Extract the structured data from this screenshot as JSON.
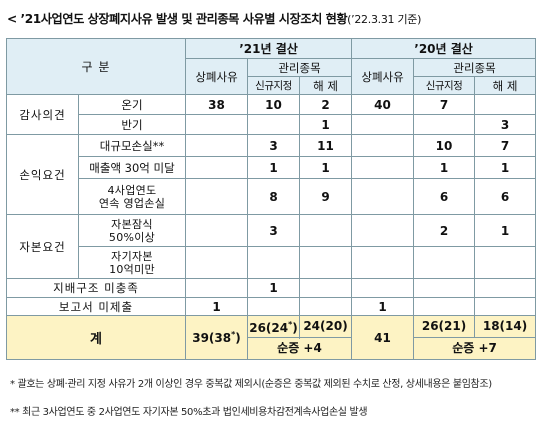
{
  "title": {
    "main": "< ’21사업연도 상장폐지사유 발생 및 관리종목 사유별 시장조치 현황",
    "asof": "(’22.3.31 기준)"
  },
  "headers": {
    "category": "구  분",
    "year21": "’21년 결산",
    "year20": "’20년 결산",
    "delisting": "상폐사유",
    "management": "관리종목",
    "new_designation": "신규지정",
    "release": "해 제"
  },
  "groups": {
    "audit": "감사의견",
    "profit": "손익요건",
    "capital": "자본요건"
  },
  "rows": {
    "opinion_full": {
      "label": "온기",
      "d21": "38",
      "n21": "10",
      "r21": "2",
      "d20": "40",
      "n20": "7",
      "r20": ""
    },
    "opinion_half": {
      "label": "반기",
      "d21": "",
      "n21": "",
      "r21": "1",
      "d20": "",
      "n20": "",
      "r20": "3"
    },
    "large_loss": {
      "label": "대규모손실**",
      "d21": "",
      "n21": "3",
      "r21": "11",
      "d20": "",
      "n20": "10",
      "r20": "7"
    },
    "low_sales": {
      "label": "매출액 30억 미달",
      "d21": "",
      "n21": "1",
      "r21": "1",
      "d20": "",
      "n20": "1",
      "r20": "1"
    },
    "op_loss": {
      "label1": "4사업연도",
      "label2": "연속 영업손실",
      "d21": "",
      "n21": "8",
      "r21": "9",
      "d20": "",
      "n20": "6",
      "r20": "6"
    },
    "impairment": {
      "label1": "자본잠식",
      "label2": "50%이상",
      "d21": "",
      "n21": "3",
      "r21": "",
      "d20": "",
      "n20": "2",
      "r20": "1"
    },
    "low_equity": {
      "label1": "자기자본",
      "label2": "10억미만",
      "d21": "",
      "n21": "",
      "r21": "",
      "d20": "",
      "n20": "",
      "r20": ""
    },
    "governance": {
      "label": "지배구조 미충족",
      "d21": "",
      "n21": "1",
      "r21": "",
      "d20": "",
      "n20": "",
      "r20": ""
    },
    "report_missing": {
      "label": "보고서 미제출",
      "d21": "1",
      "n21": "",
      "r21": "",
      "d20": "1",
      "n20": "",
      "r20": ""
    }
  },
  "total": {
    "label": "계",
    "d21_main": "39(38",
    "d21_sup": "*",
    "d21_close": ")",
    "n21_main": "26(24",
    "n21_sup": "*",
    "n21_close": ")",
    "r21": "24(20)",
    "net21": "순증  +4",
    "d20": "41",
    "n20": "26(21)",
    "r20": "18(14)",
    "net20": "순증  +7"
  },
  "footnotes": {
    "note1": "* 괄호는 상폐·관리 지정 사유가 2개 이상인 경우 중복값 제외시(순증은 중복값 제외된 수치로 산정, 상세내용은 붙임참조)",
    "note2": "** 최근 3사업연도 중 2사업연도 자기자본 50%초과 법인세비용차감전계속사업손실 발생"
  }
}
